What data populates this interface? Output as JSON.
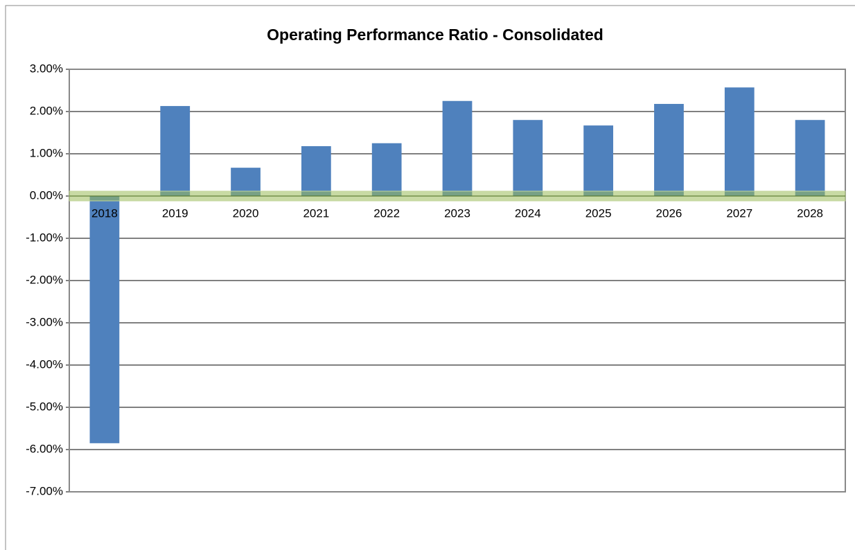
{
  "chart_data": {
    "type": "bar",
    "title": "Operating Performance Ratio - Consolidated",
    "categories": [
      "2018",
      "2019",
      "2020",
      "2021",
      "2022",
      "2023",
      "2024",
      "2025",
      "2026",
      "2027",
      "2028"
    ],
    "values": [
      -5.85,
      2.13,
      0.67,
      1.18,
      1.25,
      2.25,
      1.8,
      1.67,
      2.18,
      2.57,
      1.8
    ],
    "color": "#4f81bd",
    "ylim": [
      -7,
      3
    ],
    "yticks": [
      {
        "value": -7,
        "label": "-7.00%"
      },
      {
        "value": -6,
        "label": "-6.00%"
      },
      {
        "value": -5,
        "label": "-5.00%"
      },
      {
        "value": -4,
        "label": "-4.00%"
      },
      {
        "value": -3,
        "label": "-3.00%"
      },
      {
        "value": -2,
        "label": "-2.00%"
      },
      {
        "value": -1,
        "label": "-1.00%"
      },
      {
        "value": 0,
        "label": "0.00%"
      },
      {
        "value": 1,
        "label": "1.00%"
      },
      {
        "value": 2,
        "label": "2.00%"
      },
      {
        "value": 3,
        "label": "3.00%"
      }
    ],
    "grid": true
  }
}
